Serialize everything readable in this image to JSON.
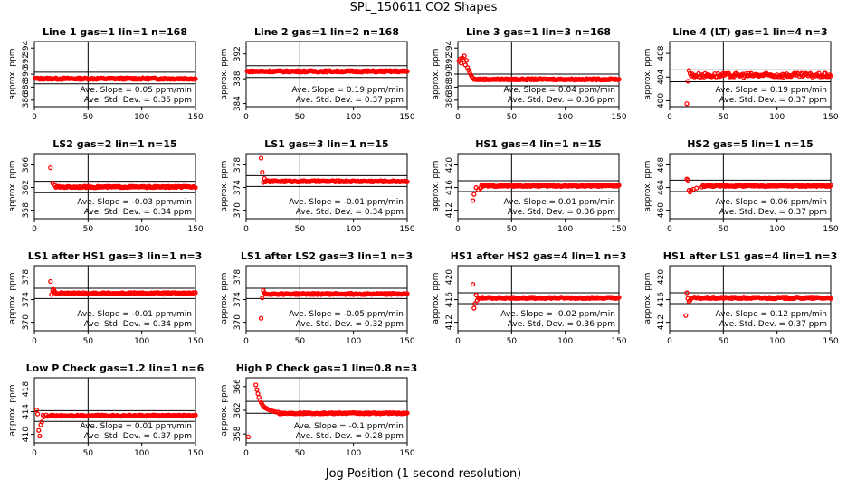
{
  "page_title": "SPL_150611  CO2 Shapes",
  "x_axis_title": "Jog Position (1 second resolution)",
  "colors": {
    "points": "#ff0000",
    "axes": "#000000",
    "background": "#ffffff"
  },
  "chart_data": [
    {
      "type": "scatter",
      "title": "Line 1 gas=1 lin=1 n=168",
      "ylabel": "approx. ppm",
      "xlim": [
        0,
        150
      ],
      "ylim": [
        385,
        395
      ],
      "yticks": [
        386,
        388,
        390,
        392,
        394
      ],
      "xticks": [
        0,
        50,
        100,
        150
      ],
      "hlines": [
        388.5,
        390.3
      ],
      "vline": 50,
      "baseline": 389.3,
      "noise": 0.12,
      "initial": [],
      "slope_text": "Ave. Slope =  0.05  ppm/min",
      "std_text": "Ave. Std. Dev. =  0.35  ppm"
    },
    {
      "type": "scatter",
      "title": "Line 2 gas=1 lin=2 n=168",
      "ylabel": "approx. ppm",
      "xlim": [
        0,
        150
      ],
      "ylim": [
        383.5,
        394
      ],
      "yticks": [
        384,
        388,
        392
      ],
      "xticks": [
        0,
        50,
        100,
        150
      ],
      "hlines": [
        388.2,
        390.1
      ],
      "vline": 50,
      "baseline": 389.2,
      "noise": 0.12,
      "initial": [],
      "slope_text": "Ave. Slope =  0.19  ppm/min",
      "std_text": "Ave. Std. Dev. =  0.37  ppm"
    },
    {
      "type": "scatter",
      "title": "Line 3 gas=1 lin=3 n=168",
      "ylabel": "approx. ppm",
      "xlim": [
        0,
        150
      ],
      "ylim": [
        385,
        395
      ],
      "yticks": [
        386,
        388,
        390,
        392,
        394
      ],
      "xticks": [
        0,
        50,
        100,
        150
      ],
      "hlines": [
        388.2,
        390.0
      ],
      "vline": 50,
      "baseline": 389.2,
      "noise": 0.1,
      "initial": [
        [
          1,
          392
        ],
        [
          2,
          392.3
        ],
        [
          3,
          391.7
        ],
        [
          4,
          392.5
        ],
        [
          5,
          392.2
        ],
        [
          6,
          392.8
        ],
        [
          7,
          391.4
        ],
        [
          8,
          392.1
        ],
        [
          9,
          391
        ],
        [
          10,
          390.6
        ],
        [
          11,
          390.2
        ],
        [
          12,
          389.9
        ],
        [
          13,
          389.6
        ],
        [
          14,
          389.4
        ]
      ],
      "slope_text": "Ave. Slope =  0.04  ppm/min",
      "std_text": "Ave. Std. Dev. =  0.36  ppm"
    },
    {
      "type": "scatter",
      "title": "Line 4 (LT) gas=1 lin=4 n=3",
      "ylabel": "approx. ppm",
      "xlim": [
        0,
        150
      ],
      "ylim": [
        399,
        410
      ],
      "yticks": [
        400,
        404,
        408
      ],
      "xticks": [
        0,
        50,
        100,
        150
      ],
      "hlines": [
        403.2,
        405.2
      ],
      "vline": 50,
      "baseline": 404.3,
      "noise": 0.35,
      "initial": [
        [
          16,
          399.5
        ],
        [
          17,
          403.3
        ],
        [
          18,
          405.1
        ],
        [
          19,
          404.6
        ]
      ],
      "slope_text": "Ave. Slope =  0.19  ppm/min",
      "std_text": "Ave. Std. Dev. =  0.37  ppm"
    },
    {
      "type": "scatter",
      "title": "LS2 gas=2 lin=1 n=15",
      "ylabel": "approx. ppm",
      "xlim": [
        0,
        150
      ],
      "ylim": [
        356.5,
        368
      ],
      "yticks": [
        358,
        362,
        366
      ],
      "xticks": [
        0,
        50,
        100,
        150
      ],
      "hlines": [
        361.1,
        363.1
      ],
      "vline": 50,
      "baseline": 362.1,
      "noise": 0.12,
      "initial": [
        [
          15,
          365.5
        ],
        [
          17,
          362.8
        ],
        [
          19,
          362.4
        ]
      ],
      "slope_text": "Ave. Slope =  -0.03  ppm/min",
      "std_text": "Ave. Std. Dev. =  0.34  ppm"
    },
    {
      "type": "scatter",
      "title": "LS1 gas=3 lin=1 n=15",
      "ylabel": "approx. ppm",
      "xlim": [
        0,
        150
      ],
      "ylim": [
        368.5,
        380
      ],
      "yticks": [
        370,
        374,
        378
      ],
      "xticks": [
        0,
        50,
        100,
        150
      ],
      "hlines": [
        374.2,
        376.1
      ],
      "vline": 50,
      "baseline": 375.1,
      "noise": 0.12,
      "initial": [
        [
          14,
          379.2
        ],
        [
          15,
          376.7
        ],
        [
          16,
          374.9
        ],
        [
          17,
          375.6
        ]
      ],
      "slope_text": "Ave. Slope =  -0.01  ppm/min",
      "std_text": "Ave. Std. Dev. =  0.34  ppm"
    },
    {
      "type": "scatter",
      "title": "HS1 gas=4 lin=1 n=15",
      "ylabel": "approx. ppm",
      "xlim": [
        0,
        150
      ],
      "ylim": [
        410.5,
        422
      ],
      "yticks": [
        412,
        416,
        420
      ],
      "xticks": [
        0,
        50,
        100,
        150
      ],
      "hlines": [
        415.3,
        417.2
      ],
      "vline": 50,
      "baseline": 416.3,
      "noise": 0.12,
      "initial": [
        [
          14,
          413.7
        ],
        [
          15,
          414.8
        ],
        [
          17,
          416
        ],
        [
          19,
          415.6
        ],
        [
          21,
          415.9
        ]
      ],
      "slope_text": "Ave. Slope =  0.01  ppm/min",
      "std_text": "Ave. Std. Dev. =  0.36  ppm"
    },
    {
      "type": "scatter",
      "title": "HS2 gas=5 lin=1 n=15",
      "ylabel": "approx. ppm",
      "xlim": [
        0,
        150
      ],
      "ylim": [
        458.5,
        470
      ],
      "yticks": [
        460,
        464,
        468
      ],
      "xticks": [
        0,
        50,
        100,
        150
      ],
      "hlines": [
        463.3,
        465.3
      ],
      "vline": 50,
      "baseline": 464.3,
      "noise": 0.12,
      "initial": [
        [
          16,
          465.5
        ],
        [
          17,
          465.3
        ],
        [
          18,
          463.5
        ],
        [
          19,
          463.2
        ],
        [
          20,
          463.5
        ],
        [
          22,
          463.7
        ],
        [
          25,
          463.9
        ],
        [
          30,
          464.1
        ]
      ],
      "slope_text": "Ave. Slope =  0.06  ppm/min",
      "std_text": "Ave. Std. Dev. =  0.37  ppm"
    },
    {
      "type": "scatter",
      "title": "LS1 after HS1 gas=3 lin=1 n=3",
      "ylabel": "approx. ppm",
      "xlim": [
        0,
        150
      ],
      "ylim": [
        368.5,
        380
      ],
      "yticks": [
        370,
        374,
        378
      ],
      "xticks": [
        0,
        50,
        100,
        150
      ],
      "hlines": [
        374.2,
        376.0
      ],
      "vline": 50,
      "baseline": 375.1,
      "noise": 0.15,
      "initial": [
        [
          15,
          377.2
        ],
        [
          16,
          374.9
        ],
        [
          17,
          375.6
        ],
        [
          18,
          375.8
        ],
        [
          19,
          375.4
        ]
      ],
      "slope_text": "Ave. Slope =  -0.01  ppm/min",
      "std_text": "Ave. Std. Dev. =  0.34  ppm"
    },
    {
      "type": "scatter",
      "title": "LS1 after LS2 gas=3 lin=1 n=3",
      "ylabel": "approx. ppm",
      "xlim": [
        0,
        150
      ],
      "ylim": [
        368.5,
        380
      ],
      "yticks": [
        370,
        374,
        378
      ],
      "xticks": [
        0,
        50,
        100,
        150
      ],
      "hlines": [
        374.2,
        376.0
      ],
      "vline": 50,
      "baseline": 375.0,
      "noise": 0.12,
      "initial": [
        [
          14,
          370.7
        ],
        [
          15,
          374.3
        ],
        [
          16,
          375.6
        ],
        [
          17,
          375.2
        ]
      ],
      "slope_text": "Ave. Slope =  -0.05  ppm/min",
      "std_text": "Ave. Std. Dev. =  0.32  ppm"
    },
    {
      "type": "scatter",
      "title": "HS1 after HS2 gas=4 lin=1 n=3",
      "ylabel": "approx. ppm",
      "xlim": [
        0,
        150
      ],
      "ylim": [
        410.5,
        422
      ],
      "yticks": [
        412,
        416,
        420
      ],
      "xticks": [
        0,
        50,
        100,
        150
      ],
      "hlines": [
        415.3,
        417.2
      ],
      "vline": 50,
      "baseline": 416.3,
      "noise": 0.12,
      "initial": [
        [
          14,
          418.7
        ],
        [
          15,
          414.5
        ],
        [
          16,
          415.3
        ],
        [
          17,
          416.8
        ],
        [
          18,
          415.9
        ]
      ],
      "slope_text": "Ave. Slope =  -0.02  ppm/min",
      "std_text": "Ave. Std. Dev. =  0.36  ppm"
    },
    {
      "type": "scatter",
      "title": "HS1 after LS1 gas=4 lin=1 n=3",
      "ylabel": "approx. ppm",
      "xlim": [
        0,
        150
      ],
      "ylim": [
        410.5,
        422
      ],
      "yticks": [
        412,
        416,
        420
      ],
      "xticks": [
        0,
        50,
        100,
        150
      ],
      "hlines": [
        415.3,
        417.2
      ],
      "vline": 50,
      "baseline": 416.3,
      "noise": 0.15,
      "initial": [
        [
          15,
          413.2
        ],
        [
          16,
          417.2
        ],
        [
          17,
          416.2
        ],
        [
          18,
          415.7
        ],
        [
          19,
          415.9
        ]
      ],
      "slope_text": "Ave. Slope =  0.12  ppm/min",
      "std_text": "Ave. Std. Dev. =  0.37  ppm"
    },
    {
      "type": "scatter",
      "title": "Low P Check gas=1.2 lin=1 n=6",
      "ylabel": "approx. ppm",
      "xlim": [
        0,
        150
      ],
      "ylim": [
        408.5,
        420
      ],
      "yticks": [
        410,
        414,
        418
      ],
      "xticks": [
        0,
        50,
        100,
        150
      ],
      "hlines": [
        412.3,
        414.2
      ],
      "vline": 50,
      "baseline": 413.3,
      "noise": 0.12,
      "initial": [
        [
          2,
          414.3
        ],
        [
          3,
          413.6
        ],
        [
          4,
          410.7
        ],
        [
          5,
          409.7
        ],
        [
          6,
          411.7
        ],
        [
          7,
          412.2
        ],
        [
          8,
          413.4
        ],
        [
          9,
          413.1
        ],
        [
          11,
          413.4
        ],
        [
          13,
          413.2
        ]
      ],
      "slope_text": "Ave. Slope =  0.01  ppm/min",
      "std_text": "Ave. Std. Dev. =  0.37  ppm"
    },
    {
      "type": "scatter",
      "title": "High P Check gas=1 lin=0.8 n=3",
      "ylabel": "approx. ppm",
      "xlim": [
        0,
        150
      ],
      "ylim": [
        356.5,
        367.5
      ],
      "yticks": [
        358,
        362,
        366
      ],
      "xticks": [
        0,
        50,
        100,
        150
      ],
      "hlines": [
        361.5,
        363.5
      ],
      "vline": 50,
      "baseline": 361.5,
      "noise": 0.1,
      "initial": [
        [
          2,
          357.5
        ],
        [
          9,
          366.3
        ],
        [
          10,
          365.5
        ],
        [
          11,
          364.8
        ],
        [
          12,
          364.2
        ],
        [
          13,
          363.7
        ],
        [
          14,
          363.3
        ],
        [
          15,
          363.0
        ],
        [
          16,
          362.7
        ],
        [
          17,
          362.5
        ],
        [
          18,
          362.4
        ],
        [
          19,
          362.3
        ],
        [
          20,
          362.2
        ],
        [
          22,
          362.0
        ],
        [
          24,
          361.9
        ],
        [
          26,
          361.8
        ],
        [
          28,
          361.7
        ],
        [
          30,
          361.7
        ]
      ],
      "slope_text": "Ave. Slope =  -0.1  ppm/min",
      "std_text": "Ave. Std. Dev. =  0.28  ppm"
    }
  ]
}
